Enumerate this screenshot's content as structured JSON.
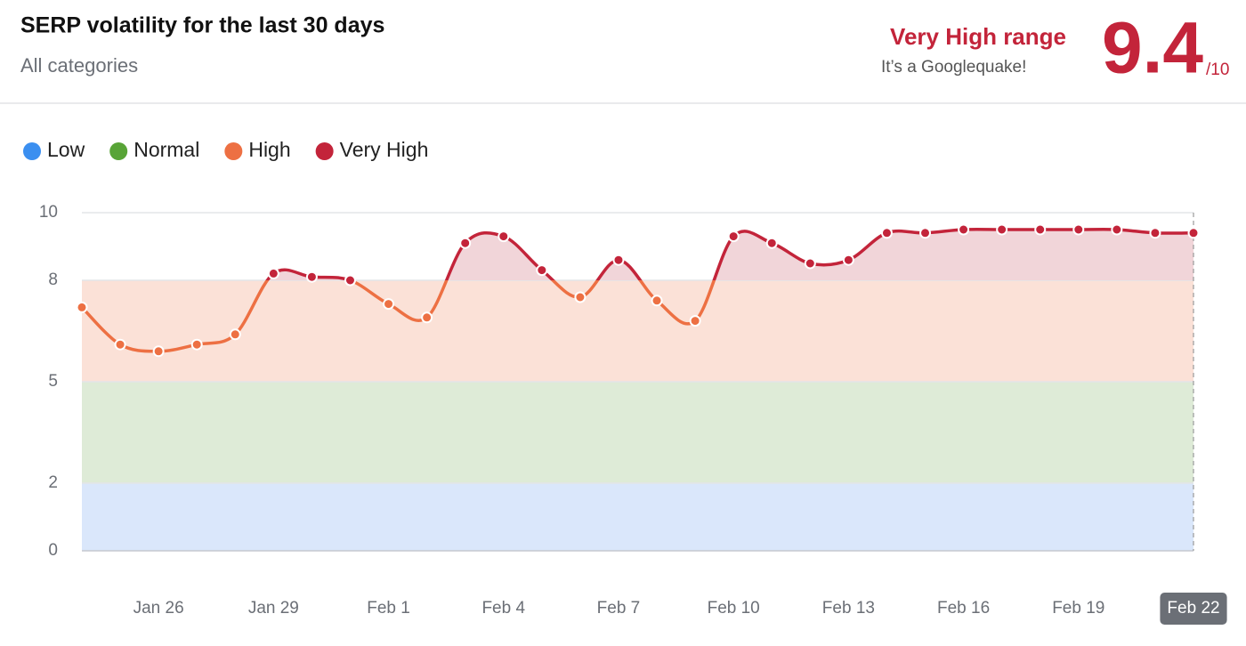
{
  "header": {
    "title": "SERP volatility for the last 30 days",
    "subtitle": "All categories",
    "range_label": "Very High range",
    "range_note": "It’s a Googlequake!",
    "score": 9.4,
    "score_max_label": "/10"
  },
  "chart_data": {
    "type": "line",
    "categories": [
      null,
      null,
      "Jan 26",
      null,
      null,
      "Jan 29",
      null,
      null,
      "Feb 1",
      null,
      null,
      "Feb 4",
      null,
      null,
      "Feb 7",
      null,
      null,
      "Feb 10",
      null,
      null,
      "Feb 13",
      null,
      null,
      "Feb 16",
      null,
      null,
      "Feb 19",
      null,
      null,
      "Feb 22"
    ],
    "values": [
      7.2,
      6.1,
      5.9,
      6.1,
      6.4,
      8.2,
      8.1,
      8.0,
      7.3,
      6.9,
      9.1,
      9.3,
      8.3,
      7.5,
      8.6,
      7.4,
      6.8,
      9.3,
      9.1,
      8.5,
      8.6,
      9.4,
      9.4,
      9.5,
      9.5,
      9.5,
      9.5,
      9.5,
      9.4,
      9.4
    ],
    "bands": [
      {
        "name": "Low",
        "range": [
          0,
          2
        ],
        "color": "#3b8ff0",
        "fill": "#dae7fb"
      },
      {
        "name": "Normal",
        "range": [
          2,
          5
        ],
        "color": "#58a437",
        "fill": "#deebd7"
      },
      {
        "name": "High",
        "range": [
          5,
          8
        ],
        "color": "#ed7043",
        "fill": "#fbe1d7"
      },
      {
        "name": "Very High",
        "range": [
          8,
          10
        ],
        "color": "#c3243a",
        "fill": "#f1d5d9"
      }
    ],
    "ylim": [
      0,
      10
    ],
    "yticks": [
      0,
      2,
      5,
      8,
      10
    ],
    "grid": true
  }
}
